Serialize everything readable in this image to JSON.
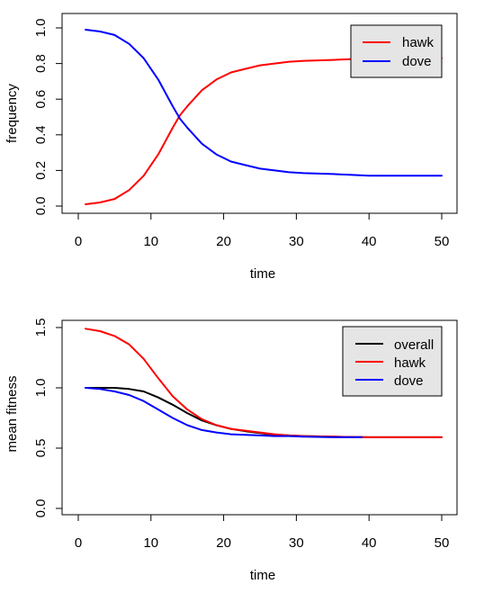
{
  "chart_data": [
    {
      "type": "line",
      "title": "",
      "xlabel": "time",
      "ylabel": "frequency",
      "xlim": [
        0,
        50
      ],
      "ylim": [
        0,
        1.0
      ],
      "x_ticks": [
        0,
        10,
        20,
        30,
        40,
        50
      ],
      "y_ticks": [
        0.0,
        0.2,
        0.4,
        0.6,
        0.8,
        1.0
      ],
      "y_tick_labels": [
        "0.0",
        "0.2",
        "0.4",
        "0.6",
        "0.8",
        "1.0"
      ],
      "grid": false,
      "legend_position": "top-right",
      "x": [
        1,
        3,
        5,
        7,
        9,
        11,
        13,
        14,
        15,
        17,
        19,
        21,
        23,
        25,
        27,
        29,
        31,
        35,
        40,
        45,
        50
      ],
      "series": [
        {
          "name": "hawk",
          "color": "#FF0000",
          "values": [
            0.01,
            0.02,
            0.04,
            0.09,
            0.17,
            0.29,
            0.44,
            0.51,
            0.56,
            0.65,
            0.71,
            0.75,
            0.77,
            0.79,
            0.8,
            0.81,
            0.815,
            0.82,
            0.83,
            0.83,
            0.83
          ]
        },
        {
          "name": "dove",
          "color": "#0000FF",
          "values": [
            0.99,
            0.98,
            0.96,
            0.91,
            0.83,
            0.71,
            0.56,
            0.49,
            0.44,
            0.35,
            0.29,
            0.25,
            0.23,
            0.21,
            0.2,
            0.19,
            0.185,
            0.18,
            0.17,
            0.17,
            0.17
          ]
        }
      ]
    },
    {
      "type": "line",
      "title": "",
      "xlabel": "time",
      "ylabel": "mean fitness",
      "xlim": [
        0,
        50
      ],
      "ylim": [
        0,
        1.5
      ],
      "x_ticks": [
        0,
        10,
        20,
        30,
        40,
        50
      ],
      "y_ticks": [
        0.0,
        0.5,
        1.0,
        1.5
      ],
      "y_tick_labels": [
        "0.0",
        "0.5",
        "1.0",
        "1.5"
      ],
      "grid": false,
      "legend_position": "top-right",
      "series": [
        {
          "name": "overall",
          "color": "#000000",
          "x": [
            1,
            3,
            5,
            7,
            9,
            11,
            13,
            15,
            17,
            19,
            21,
            23,
            25,
            27,
            29,
            31,
            35,
            40,
            45,
            50
          ],
          "values": [
            1.0,
            1.0,
            1.0,
            0.99,
            0.97,
            0.92,
            0.86,
            0.79,
            0.73,
            0.69,
            0.66,
            0.64,
            0.625,
            0.61,
            0.605,
            0.6,
            0.595,
            0.59,
            0.59,
            0.59
          ]
        },
        {
          "name": "hawk",
          "color": "#FF0000",
          "x": [
            1,
            3,
            5,
            7,
            9,
            11,
            13,
            15,
            17,
            19,
            21,
            23,
            25,
            27,
            29,
            31,
            35,
            40,
            45,
            50
          ],
          "values": [
            1.49,
            1.47,
            1.43,
            1.36,
            1.24,
            1.08,
            0.93,
            0.82,
            0.74,
            0.69,
            0.66,
            0.645,
            0.63,
            0.615,
            0.605,
            0.6,
            0.595,
            0.59,
            0.59,
            0.59
          ]
        },
        {
          "name": "dove",
          "color": "#0000FF",
          "x": [
            1,
            3,
            5,
            7,
            9,
            11,
            13,
            15,
            17,
            19,
            21,
            23,
            25,
            27,
            29,
            31,
            35,
            39
          ],
          "values": [
            1.0,
            0.99,
            0.97,
            0.94,
            0.89,
            0.82,
            0.75,
            0.69,
            0.65,
            0.63,
            0.615,
            0.61,
            0.605,
            0.6,
            0.6,
            0.595,
            0.59,
            0.59
          ]
        }
      ]
    }
  ]
}
